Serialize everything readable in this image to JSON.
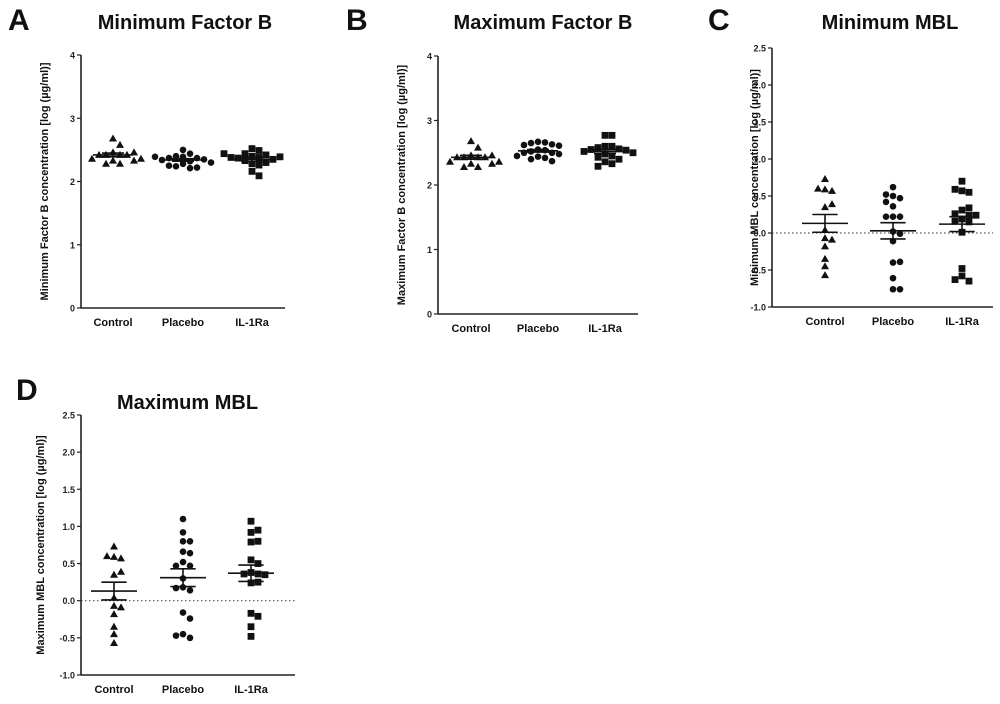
{
  "chart_data": [
    {
      "id": "A",
      "type": "scatter",
      "letter": "A",
      "title": "Minimum Factor B",
      "xlabel": "",
      "ylabel": "Minimum Factor B concentration [log (µg/ml)]",
      "categories": [
        "Control",
        "Placebo",
        "IL-1Ra"
      ],
      "ylim": [
        0,
        4
      ],
      "yticks": [
        0,
        1,
        2,
        3,
        4
      ],
      "ytick_labels": [
        "0",
        "1",
        "2",
        "3",
        "4"
      ],
      "zero_line": false,
      "series": [
        {
          "name": "Control",
          "marker": "triangle",
          "values": [
            2.68,
            2.58,
            2.46,
            2.42,
            2.42,
            2.42,
            2.42,
            2.46,
            2.36,
            2.33,
            2.28,
            2.33,
            2.28,
            2.36
          ],
          "mean": 2.42,
          "sem": 0.03
        },
        {
          "name": "Placebo",
          "marker": "circle",
          "values": [
            2.5,
            2.44,
            2.39,
            2.4,
            2.37,
            2.37,
            2.35,
            2.34,
            2.32,
            2.28,
            2.24,
            2.21,
            2.22,
            2.25,
            2.3,
            2.39
          ],
          "mean": 2.34,
          "sem": 0.02
        },
        {
          "name": "IL-1Ra",
          "marker": "square",
          "values": [
            2.52,
            2.49,
            2.44,
            2.42,
            2.4,
            2.38,
            2.37,
            2.35,
            2.33,
            2.3,
            2.28,
            2.26,
            2.16,
            2.09,
            2.38,
            2.39,
            2.44
          ],
          "mean": 2.35,
          "sem": 0.03
        }
      ]
    },
    {
      "id": "B",
      "type": "scatter",
      "letter": "B",
      "title": "Maximum Factor B",
      "xlabel": "",
      "ylabel": "Maximum Factor B concentration [log (µg/ml)]",
      "categories": [
        "Control",
        "Placebo",
        "IL-1Ra"
      ],
      "ylim": [
        0,
        4
      ],
      "yticks": [
        0,
        1,
        2,
        3,
        4
      ],
      "ytick_labels": [
        "0",
        "1",
        "2",
        "3",
        "4"
      ],
      "zero_line": false,
      "series": [
        {
          "name": "Control",
          "marker": "triangle",
          "values": [
            2.68,
            2.58,
            2.46,
            2.43,
            2.43,
            2.43,
            2.43,
            2.46,
            2.36,
            2.33,
            2.28,
            2.33,
            2.28,
            2.36
          ],
          "mean": 2.43,
          "sem": 0.03
        },
        {
          "name": "Placebo",
          "marker": "circle",
          "values": [
            2.67,
            2.66,
            2.65,
            2.63,
            2.62,
            2.61,
            2.55,
            2.54,
            2.52,
            2.5,
            2.5,
            2.48,
            2.45,
            2.44,
            2.42,
            2.4,
            2.37
          ],
          "mean": 2.53,
          "sem": 0.02
        },
        {
          "name": "IL-1Ra",
          "marker": "square",
          "values": [
            2.77,
            2.77,
            2.6,
            2.6,
            2.58,
            2.56,
            2.55,
            2.54,
            2.52,
            2.5,
            2.48,
            2.45,
            2.43,
            2.4,
            2.36,
            2.33,
            2.29
          ],
          "mean": 2.52,
          "sem": 0.03
        }
      ]
    },
    {
      "id": "C",
      "type": "scatter",
      "letter": "C",
      "title": "Minimum MBL",
      "xlabel": "",
      "ylabel": "Minimum MBL concentration [log (µg/ml)]",
      "categories": [
        "Control",
        "Placebo",
        "IL-1Ra"
      ],
      "ylim": [
        -1.0,
        2.5
      ],
      "yticks": [
        -1.0,
        -0.5,
        0.0,
        0.5,
        1.0,
        1.5,
        2.0,
        2.5
      ],
      "ytick_labels": [
        "-1.0",
        "-0.5",
        "0.0",
        "0.5",
        "1.0",
        "1.5",
        "2.0",
        "2.5"
      ],
      "zero_line": true,
      "series": [
        {
          "name": "Control",
          "marker": "triangle",
          "values": [
            0.73,
            0.59,
            0.57,
            0.6,
            0.35,
            0.39,
            0.04,
            -0.07,
            -0.09,
            -0.18,
            -0.35,
            -0.45,
            -0.57
          ],
          "mean": 0.13,
          "sem": 0.12
        },
        {
          "name": "Placebo",
          "marker": "circle",
          "values": [
            0.62,
            0.5,
            0.47,
            0.52,
            0.42,
            0.36,
            0.22,
            0.22,
            0.22,
            0.02,
            -0.01,
            -0.11,
            -0.4,
            -0.39,
            -0.61,
            -0.76,
            -0.76
          ],
          "mean": 0.03,
          "sem": 0.11
        },
        {
          "name": "IL-1Ra",
          "marker": "square",
          "values": [
            0.7,
            0.57,
            0.55,
            0.59,
            0.31,
            0.24,
            0.26,
            0.34,
            0.24,
            0.19,
            0.16,
            0.15,
            0.01,
            -0.48,
            -0.58,
            -0.65,
            -0.63
          ],
          "mean": 0.12,
          "sem": 0.1
        }
      ]
    },
    {
      "id": "D",
      "type": "scatter",
      "letter": "D",
      "title": "Maximum MBL",
      "xlabel": "",
      "ylabel": "Maximum MBL concentration [log (µg/ml)]",
      "categories": [
        "Control",
        "Placebo",
        "IL-1Ra"
      ],
      "ylim": [
        -1.0,
        2.5
      ],
      "yticks": [
        -1.0,
        -0.5,
        0.0,
        0.5,
        1.0,
        1.5,
        2.0,
        2.5
      ],
      "ytick_labels": [
        "-1.0",
        "-0.5",
        "0.0",
        "0.5",
        "1.0",
        "1.5",
        "2.0",
        "2.5"
      ],
      "zero_line": true,
      "series": [
        {
          "name": "Control",
          "marker": "triangle",
          "values": [
            0.73,
            0.59,
            0.57,
            0.6,
            0.35,
            0.39,
            0.04,
            -0.07,
            -0.09,
            -0.18,
            -0.35,
            -0.45,
            -0.57
          ],
          "mean": 0.13,
          "sem": 0.12
        },
        {
          "name": "Placebo",
          "marker": "circle",
          "values": [
            1.1,
            0.92,
            0.8,
            0.8,
            0.66,
            0.64,
            0.52,
            0.47,
            0.47,
            0.3,
            0.18,
            0.14,
            0.17,
            -0.16,
            -0.24,
            -0.45,
            -0.5,
            -0.47
          ],
          "mean": 0.31,
          "sem": 0.12
        },
        {
          "name": "IL-1Ra",
          "marker": "square",
          "values": [
            1.07,
            0.92,
            0.95,
            0.79,
            0.8,
            0.55,
            0.5,
            0.38,
            0.36,
            0.36,
            0.35,
            0.24,
            0.25,
            -0.17,
            -0.21,
            -0.35,
            -0.48
          ],
          "mean": 0.37,
          "sem": 0.11
        }
      ]
    }
  ]
}
